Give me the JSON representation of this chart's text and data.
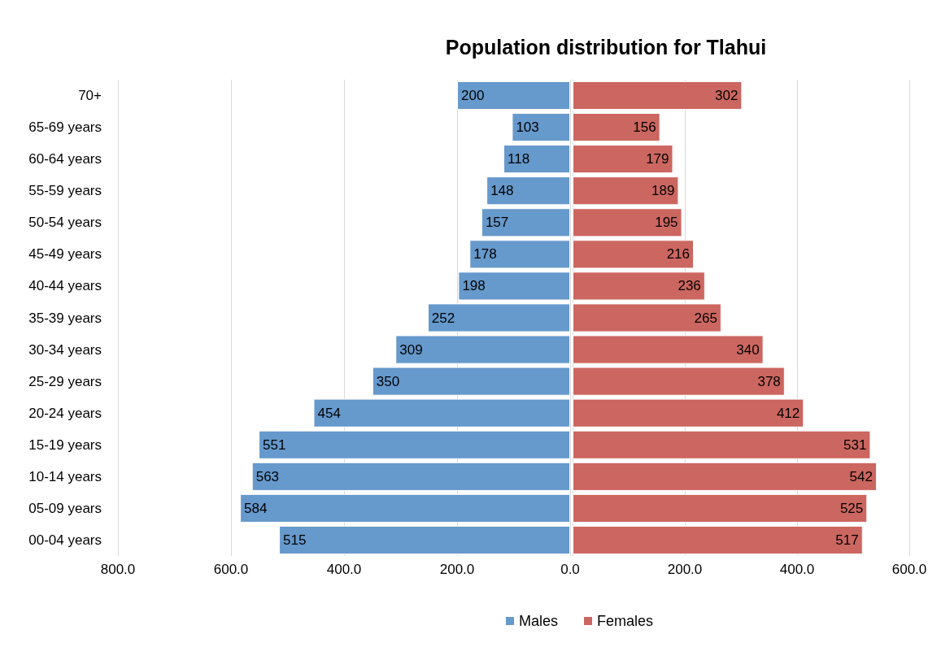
{
  "chart_data": [
    {
      "type": "bar",
      "orientation": "horizontal",
      "title": "Population distribution for Tlahui",
      "categories": [
        "70+",
        "65-69 years",
        "60-64 years",
        "55-59 years",
        "50-54 years",
        "45-49 years",
        "40-44 years",
        "35-39 years",
        "30-34 years",
        "25-29 years",
        "20-24 years",
        "15-19 years",
        "10-14 years",
        "05-09 years",
        "00-04 years"
      ],
      "series": [
        {
          "name": "Males",
          "color": "#6699cc",
          "values": [
            200,
            103,
            118,
            148,
            157,
            178,
            198,
            252,
            309,
            350,
            454,
            551,
            563,
            584,
            515
          ]
        }
      ],
      "data_labels": true,
      "xlim": [
        800,
        0
      ],
      "xticks": [
        {
          "value": 800,
          "label": "800.0"
        },
        {
          "value": 600,
          "label": "600.0"
        },
        {
          "value": 400,
          "label": "400.0"
        },
        {
          "value": 200,
          "label": "200.0"
        },
        {
          "value": 0,
          "label": "0.0"
        }
      ],
      "grid": "x",
      "legend": "bottom"
    },
    {
      "type": "bar",
      "orientation": "horizontal",
      "categories": [
        null,
        null,
        null,
        null,
        null,
        null,
        null,
        null,
        null,
        null,
        null,
        null,
        null,
        null,
        null
      ],
      "series": [
        {
          "name": "Females",
          "color": "#cc6660",
          "values": [
            302,
            156,
            179,
            189,
            195,
            216,
            236,
            265,
            340,
            378,
            412,
            531,
            542,
            525,
            517
          ]
        }
      ],
      "data_labels": true,
      "xlim": [
        0,
        600
      ],
      "xticks": [
        {
          "value": 0,
          "label": null
        },
        {
          "value": 200,
          "label": "200.0"
        },
        {
          "value": 400,
          "label": "400.0"
        },
        {
          "value": 600,
          "label": "600.0"
        }
      ],
      "grid": "x",
      "legend": "bottom",
      "tick_labels": "x"
    }
  ]
}
